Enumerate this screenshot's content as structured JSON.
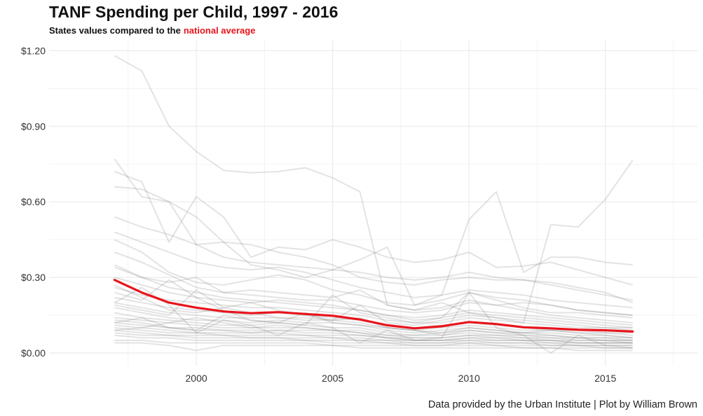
{
  "header": {
    "title": "TANF Spending per Child, 1997 - 2016",
    "subtitle_prefix": "States values compared to the",
    "subtitle_highlight": "national average"
  },
  "caption": "Data provided by the Urban Institute | Plot by William Brown",
  "colors": {
    "national": "#e8141b",
    "states": "#808080",
    "grid": "#ebebeb"
  },
  "chart_data": {
    "type": "line",
    "title": "TANF Spending per Child, 1997 - 2016",
    "subtitle": "States values compared to the national average",
    "xlabel": "",
    "ylabel": "",
    "x": [
      1997,
      1998,
      1999,
      2000,
      2001,
      2002,
      2003,
      2004,
      2005,
      2006,
      2007,
      2008,
      2009,
      2010,
      2011,
      2012,
      2013,
      2014,
      2015,
      2016
    ],
    "xlim": [
      1994.6,
      2018.4
    ],
    "ylim": [
      -0.05,
      1.24
    ],
    "x_ticks": [
      2000,
      2005,
      2010,
      2015
    ],
    "x_tick_labels": [
      "2000",
      "2005",
      "2010",
      "2015"
    ],
    "y_ticks": [
      0,
      0.3,
      0.6,
      0.9,
      1.2
    ],
    "y_tick_labels": [
      "$0.00",
      "$0.30",
      "$0.60",
      "$0.90",
      "$1.20"
    ],
    "grid": true,
    "national_average": {
      "name": "national average",
      "color": "#e8141b",
      "values": [
        0.29,
        0.24,
        0.2,
        0.18,
        0.165,
        0.158,
        0.162,
        0.155,
        0.148,
        0.133,
        0.11,
        0.098,
        0.106,
        0.123,
        0.115,
        0.102,
        0.098,
        0.092,
        0.09,
        0.085
      ]
    },
    "states": [
      {
        "values": [
          1.18,
          1.12,
          0.9,
          0.8,
          0.725,
          0.715,
          0.72,
          0.735,
          0.695,
          0.64,
          0.19,
          0.17,
          0.2,
          0.16,
          0.14,
          0.12,
          0.51,
          0.5,
          0.61,
          0.765
        ]
      },
      {
        "values": [
          0.77,
          0.62,
          0.6,
          0.54,
          0.44,
          0.35,
          0.33,
          0.3,
          0.33,
          0.37,
          0.42,
          0.19,
          0.23,
          0.53,
          0.64,
          0.32,
          0.38,
          0.38,
          0.36,
          0.35
        ]
      },
      {
        "values": [
          0.72,
          0.68,
          0.44,
          0.62,
          0.54,
          0.38,
          0.42,
          0.41,
          0.45,
          0.42,
          0.38,
          0.36,
          0.37,
          0.4,
          0.34,
          0.345,
          0.36,
          0.33,
          0.3,
          0.27
        ]
      },
      {
        "values": [
          0.66,
          0.65,
          0.6,
          0.43,
          0.44,
          0.43,
          0.4,
          0.38,
          0.35,
          0.3,
          0.28,
          0.27,
          0.29,
          0.3,
          0.29,
          0.29,
          0.28,
          0.26,
          0.24,
          0.2
        ]
      },
      {
        "values": [
          0.54,
          0.5,
          0.47,
          0.43,
          0.38,
          0.36,
          0.35,
          0.34,
          0.33,
          0.32,
          0.3,
          0.29,
          0.3,
          0.32,
          0.3,
          0.29,
          0.27,
          0.25,
          0.23,
          0.21
        ]
      },
      {
        "values": [
          0.48,
          0.44,
          0.4,
          0.36,
          0.34,
          0.33,
          0.34,
          0.32,
          0.29,
          0.26,
          0.24,
          0.22,
          0.23,
          0.25,
          0.24,
          0.23,
          0.21,
          0.2,
          0.19,
          0.18
        ]
      },
      {
        "values": [
          0.45,
          0.4,
          0.32,
          0.28,
          0.27,
          0.29,
          0.31,
          0.29,
          0.25,
          0.23,
          0.2,
          0.19,
          0.21,
          0.24,
          0.22,
          0.21,
          0.19,
          0.17,
          0.16,
          0.15
        ]
      },
      {
        "values": [
          0.4,
          0.36,
          0.31,
          0.26,
          0.24,
          0.23,
          0.22,
          0.21,
          0.21,
          0.19,
          0.17,
          0.16,
          0.17,
          0.2,
          0.19,
          0.17,
          0.15,
          0.14,
          0.13,
          0.12
        ]
      },
      {
        "values": [
          0.35,
          0.3,
          0.26,
          0.24,
          0.22,
          0.21,
          0.2,
          0.19,
          0.18,
          0.17,
          0.15,
          0.14,
          0.15,
          0.17,
          0.16,
          0.15,
          0.14,
          0.13,
          0.12,
          0.11
        ]
      },
      {
        "values": [
          0.3,
          0.27,
          0.24,
          0.22,
          0.21,
          0.2,
          0.21,
          0.2,
          0.19,
          0.17,
          0.15,
          0.13,
          0.14,
          0.16,
          0.15,
          0.14,
          0.13,
          0.12,
          0.11,
          0.1
        ]
      },
      {
        "values": [
          0.26,
          0.23,
          0.21,
          0.2,
          0.19,
          0.18,
          0.18,
          0.17,
          0.16,
          0.15,
          0.13,
          0.12,
          0.12,
          0.14,
          0.13,
          0.12,
          0.11,
          0.1,
          0.1,
          0.09
        ]
      },
      {
        "values": [
          0.22,
          0.2,
          0.18,
          0.17,
          0.16,
          0.15,
          0.16,
          0.15,
          0.14,
          0.13,
          0.11,
          0.1,
          0.11,
          0.12,
          0.11,
          0.1,
          0.09,
          0.09,
          0.08,
          0.08
        ]
      },
      {
        "values": [
          0.2,
          0.18,
          0.16,
          0.15,
          0.14,
          0.14,
          0.14,
          0.13,
          0.13,
          0.12,
          0.1,
          0.09,
          0.1,
          0.11,
          0.1,
          0.09,
          0.09,
          0.08,
          0.08,
          0.07
        ]
      },
      {
        "values": [
          0.18,
          0.16,
          0.14,
          0.13,
          0.13,
          0.12,
          0.13,
          0.12,
          0.12,
          0.11,
          0.09,
          0.08,
          0.09,
          0.1,
          0.09,
          0.08,
          0.08,
          0.07,
          0.07,
          0.06
        ]
      },
      {
        "values": [
          0.16,
          0.14,
          0.13,
          0.12,
          0.11,
          0.11,
          0.12,
          0.11,
          0.1,
          0.1,
          0.08,
          0.07,
          0.08,
          0.09,
          0.08,
          0.07,
          0.07,
          0.06,
          0.06,
          0.06
        ]
      },
      {
        "values": [
          0.14,
          0.13,
          0.12,
          0.11,
          0.1,
          0.1,
          0.1,
          0.1,
          0.09,
          0.09,
          0.07,
          0.07,
          0.07,
          0.08,
          0.07,
          0.07,
          0.06,
          0.06,
          0.05,
          0.05
        ]
      },
      {
        "values": [
          0.13,
          0.12,
          0.1,
          0.1,
          0.09,
          0.09,
          0.09,
          0.09,
          0.09,
          0.08,
          0.07,
          0.06,
          0.06,
          0.07,
          0.07,
          0.06,
          0.06,
          0.05,
          0.05,
          0.05
        ]
      },
      {
        "values": [
          0.12,
          0.11,
          0.1,
          0.09,
          0.09,
          0.08,
          0.09,
          0.08,
          0.08,
          0.07,
          0.06,
          0.06,
          0.06,
          0.07,
          0.06,
          0.06,
          0.05,
          0.05,
          0.05,
          0.04
        ]
      },
      {
        "values": [
          0.11,
          0.1,
          0.09,
          0.08,
          0.08,
          0.08,
          0.08,
          0.07,
          0.07,
          0.07,
          0.06,
          0.05,
          0.05,
          0.06,
          0.06,
          0.05,
          0.05,
          0.04,
          0.04,
          0.04
        ]
      },
      {
        "values": [
          0.1,
          0.09,
          0.08,
          0.08,
          0.07,
          0.07,
          0.07,
          0.07,
          0.06,
          0.06,
          0.05,
          0.05,
          0.05,
          0.05,
          0.05,
          0.05,
          0.04,
          0.04,
          0.04,
          0.04
        ]
      },
      {
        "values": [
          0.09,
          0.08,
          0.07,
          0.07,
          0.07,
          0.06,
          0.06,
          0.06,
          0.06,
          0.05,
          0.05,
          0.04,
          0.04,
          0.05,
          0.04,
          0.04,
          0.04,
          0.03,
          0.03,
          0.03
        ]
      },
      {
        "values": [
          0.08,
          0.07,
          0.07,
          0.06,
          0.06,
          0.06,
          0.06,
          0.05,
          0.05,
          0.05,
          0.04,
          0.04,
          0.04,
          0.04,
          0.04,
          0.04,
          0.03,
          0.03,
          0.03,
          0.03
        ]
      },
      {
        "values": [
          0.07,
          0.06,
          0.06,
          0.05,
          0.05,
          0.05,
          0.05,
          0.05,
          0.04,
          0.04,
          0.04,
          0.03,
          0.03,
          0.04,
          0.03,
          0.03,
          0.03,
          0.03,
          0.02,
          0.02
        ]
      },
      {
        "values": [
          0.05,
          0.05,
          0.04,
          0.04,
          0.04,
          0.04,
          0.04,
          0.04,
          0.03,
          0.03,
          0.03,
          0.03,
          0.03,
          0.03,
          0.03,
          0.02,
          0.02,
          0.02,
          0.02,
          0.02
        ]
      },
      {
        "values": [
          0.04,
          0.04,
          0.03,
          0.01,
          0.03,
          0.03,
          0.03,
          0.03,
          0.03,
          0.02,
          0.02,
          0.02,
          0.02,
          0.02,
          0.02,
          0.02,
          0.02,
          0.01,
          0.01,
          0.01
        ]
      },
      {
        "values": [
          0.2,
          0.26,
          0.19,
          0.08,
          0.13,
          0.11,
          0.07,
          0.12,
          0.1,
          0.04,
          0.09,
          0.05,
          0.06,
          0.24,
          0.1,
          0.07,
          0.0,
          0.07,
          0.03,
          0.02
        ]
      },
      {
        "values": [
          0.24,
          0.21,
          0.29,
          0.22,
          0.17,
          0.13,
          0.12,
          0.11,
          0.23,
          0.16,
          0.14,
          0.12,
          0.14,
          0.24,
          0.21,
          0.18,
          0.16,
          0.16,
          0.15,
          0.14
        ]
      },
      {
        "values": [
          0.19,
          0.17,
          0.15,
          0.25,
          0.18,
          0.16,
          0.14,
          0.14,
          0.13,
          0.19,
          0.12,
          0.11,
          0.13,
          0.15,
          0.14,
          0.13,
          0.12,
          0.11,
          0.1,
          0.1
        ]
      },
      {
        "values": [
          0.12,
          0.14,
          0.1,
          0.09,
          0.15,
          0.13,
          0.12,
          0.16,
          0.12,
          0.11,
          0.1,
          0.09,
          0.08,
          0.1,
          0.09,
          0.08,
          0.07,
          0.06,
          0.06,
          0.05
        ]
      },
      {
        "values": [
          0.09,
          0.1,
          0.12,
          0.14,
          0.12,
          0.1,
          0.11,
          0.1,
          0.09,
          0.08,
          0.06,
          0.05,
          0.05,
          0.06,
          0.05,
          0.05,
          0.05,
          0.04,
          0.04,
          0.04
        ]
      },
      {
        "values": [
          0.34,
          0.3,
          0.28,
          0.3,
          0.24,
          0.25,
          0.24,
          0.23,
          0.22,
          0.25,
          0.19,
          0.17,
          0.18,
          0.21,
          0.19,
          0.2,
          0.19,
          0.17,
          0.16,
          0.15
        ]
      },
      {
        "values": [
          0.27,
          0.22,
          0.17,
          0.16,
          0.18,
          0.2,
          0.17,
          0.15,
          0.13,
          0.14,
          0.1,
          0.09,
          0.07,
          0.09,
          0.08,
          0.08,
          0.09,
          0.08,
          0.07,
          0.06
        ]
      }
    ]
  }
}
